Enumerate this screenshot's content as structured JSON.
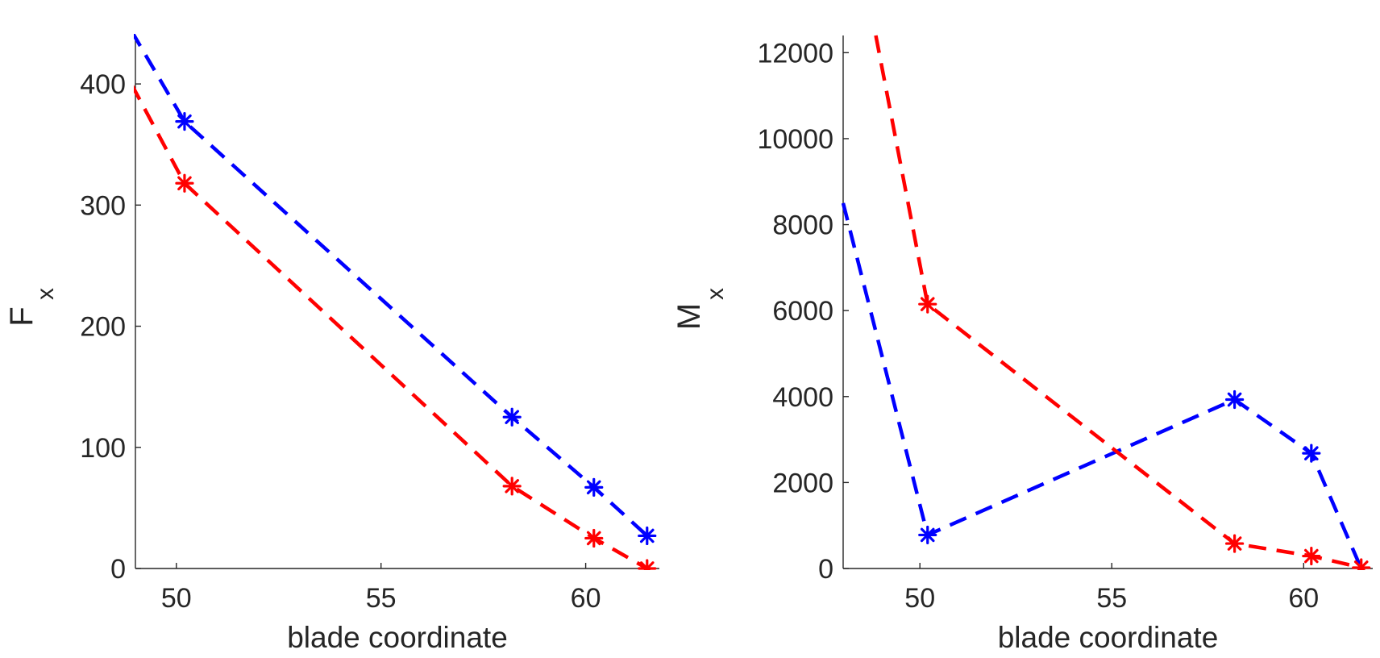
{
  "chart_data": [
    {
      "type": "line",
      "ylabel": "F",
      "ylabel_sub": "x",
      "xlabel": "blade coordinate",
      "xlim": [
        49,
        61.8
      ],
      "ylim": [
        0,
        440
      ],
      "xticks": [
        50,
        55,
        60
      ],
      "yticks": [
        0,
        100,
        200,
        300,
        400
      ],
      "grid": false,
      "series": [
        {
          "color": "#0000ff",
          "line_style": "dashed",
          "marker": "asterisk",
          "x": [
            48.9,
            50.2,
            58.2,
            60.2,
            61.5
          ],
          "y": [
            444,
            369,
            125,
            67,
            27
          ],
          "marker_x": [
            50.2,
            58.2,
            60.2,
            61.5
          ],
          "marker_y": [
            369,
            125,
            67,
            27
          ]
        },
        {
          "color": "#ff0000",
          "line_style": "dashed",
          "marker": "asterisk",
          "x": [
            48.9,
            50.2,
            58.2,
            60.2,
            61.5
          ],
          "y": [
            400,
            318,
            68,
            25,
            0
          ],
          "marker_x": [
            50.2,
            58.2,
            60.2,
            61.5
          ],
          "marker_y": [
            318,
            68,
            25,
            0
          ]
        }
      ]
    },
    {
      "type": "line",
      "ylabel": "M",
      "ylabel_sub": "x",
      "xlabel": "blade coordinate",
      "xlim": [
        48,
        61.8
      ],
      "ylim": [
        0,
        12400
      ],
      "xticks": [
        50,
        55,
        60
      ],
      "yticks": [
        0,
        2000,
        4000,
        6000,
        8000,
        10000,
        12000
      ],
      "grid": false,
      "series": [
        {
          "color": "#0000ff",
          "line_style": "dashed",
          "marker": "asterisk",
          "x": [
            48,
            50.2,
            58.2,
            60.2,
            61.5
          ],
          "y": [
            8500,
            780,
            3930,
            2680,
            0
          ],
          "marker_x": [
            50.2,
            58.2,
            60.2
          ],
          "marker_y": [
            780,
            3930,
            2680
          ]
        },
        {
          "color": "#ff0000",
          "line_style": "dashed",
          "marker": "asterisk",
          "x": [
            48.85,
            50.2,
            58.2,
            60.2,
            61.5
          ],
          "y": [
            12400,
            6150,
            580,
            290,
            20
          ],
          "marker_x": [
            50.2,
            58.2,
            60.2,
            61.5
          ],
          "marker_y": [
            6150,
            580,
            290,
            20
          ]
        }
      ]
    }
  ]
}
